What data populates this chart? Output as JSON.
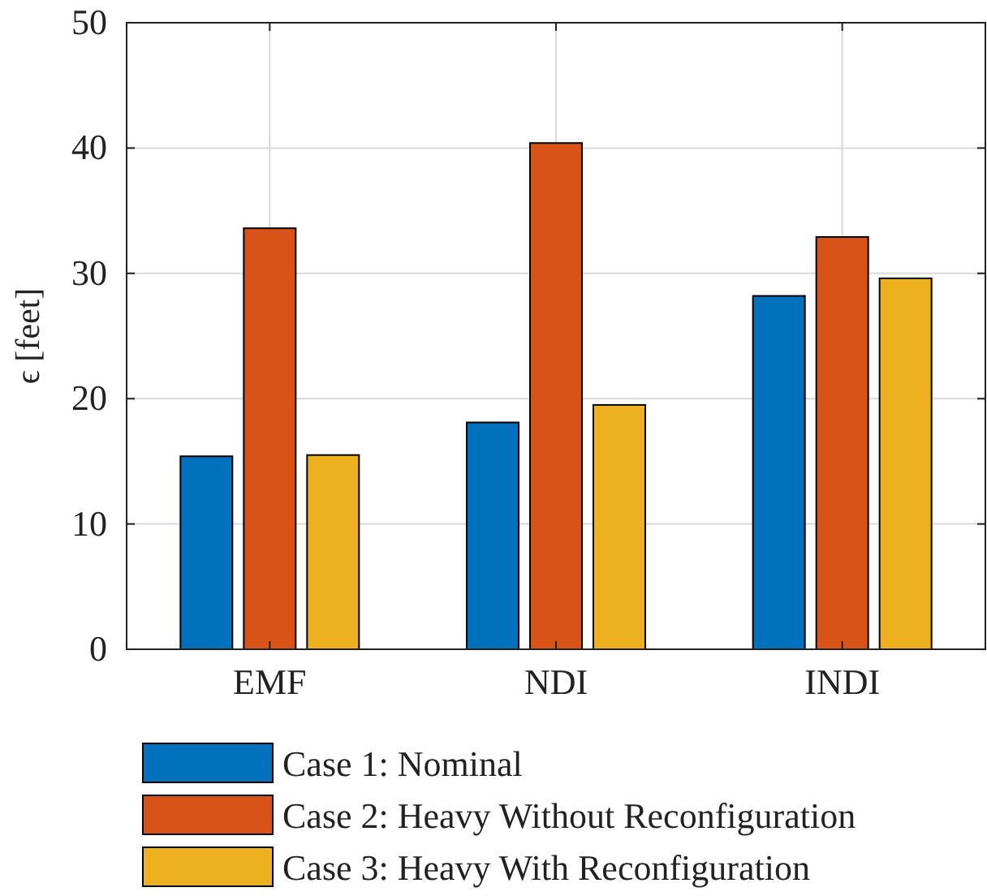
{
  "chart_data": {
    "type": "bar",
    "ylabel": "ϵ [feet]",
    "categories": [
      "EMF",
      "NDI",
      "INDI"
    ],
    "series": [
      {
        "name": "Case 1: Nominal",
        "color": "#0072bd",
        "values": [
          15.4,
          18.1,
          28.2
        ]
      },
      {
        "name": "Case 2: Heavy Without Reconfiguration",
        "color": "#d95319",
        "values": [
          33.6,
          40.4,
          32.9
        ]
      },
      {
        "name": "Case 3: Heavy With Reconfiguration",
        "color": "#edb120",
        "values": [
          15.5,
          19.5,
          29.6
        ]
      }
    ],
    "ylim": [
      0,
      50
    ],
    "yticks": [
      0,
      10,
      20,
      30,
      40,
      50
    ],
    "grid": true,
    "legend": "bottom"
  }
}
